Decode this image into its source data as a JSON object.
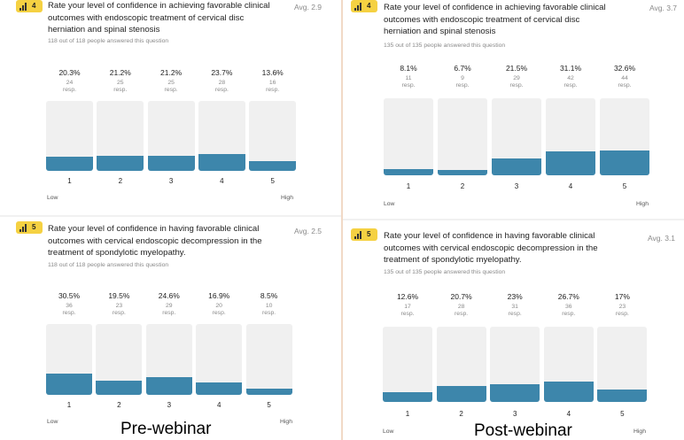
{
  "captions": {
    "left": "Pre-webinar",
    "right": "Post-webinar"
  },
  "resp_label": "resp.",
  "panels": [
    {
      "id": "pre-q4",
      "badge": "4",
      "title": "Rate your level of confidence in achieving favorable clinical outcomes with endoscopic treatment of cervical disc herniation and spinal stenosis",
      "avg": "Avg. 2.9",
      "answered": "118 out of 118 people answered this question",
      "low_label": "Low",
      "high_label": "High",
      "chart_data": {
        "type": "bar",
        "categories": [
          "1",
          "2",
          "3",
          "4",
          "5"
        ],
        "values": [
          20.3,
          21.2,
          21.2,
          23.7,
          13.6
        ],
        "value_labels": [
          "20.3%",
          "21.2%",
          "21.2%",
          "23.7%",
          "13.6%"
        ],
        "counts": [
          "24",
          "25",
          "25",
          "28",
          "16"
        ],
        "ylim": [
          0,
          100
        ]
      }
    },
    {
      "id": "post-q4",
      "badge": "4",
      "title": "Rate your level of confidence in achieving favorable clinical outcomes with endoscopic treatment of cervical disc herniation and spinal stenosis",
      "avg": "Avg. 3.7",
      "answered": "135 out of 135 people answered this question",
      "low_label": "Low",
      "high_label": "High",
      "chart_data": {
        "type": "bar",
        "categories": [
          "1",
          "2",
          "3",
          "4",
          "5"
        ],
        "values": [
          8.1,
          6.7,
          21.5,
          31.1,
          32.6
        ],
        "value_labels": [
          "8.1%",
          "6.7%",
          "21.5%",
          "31.1%",
          "32.6%"
        ],
        "counts": [
          "11",
          "9",
          "29",
          "42",
          "44"
        ],
        "ylim": [
          0,
          100
        ]
      }
    },
    {
      "id": "pre-q5",
      "badge": "5",
      "title": "Rate your level of confidence in having favorable clinical outcomes with cervical endoscopic decompression in the treatment of spondylotic myelopathy.",
      "avg": "Avg. 2.5",
      "answered": "118 out of 118 people answered this question",
      "low_label": "Low",
      "high_label": "High",
      "chart_data": {
        "type": "bar",
        "categories": [
          "1",
          "2",
          "3",
          "4",
          "5"
        ],
        "values": [
          30.5,
          19.5,
          24.6,
          16.9,
          8.5
        ],
        "value_labels": [
          "30.5%",
          "19.5%",
          "24.6%",
          "16.9%",
          "8.5%"
        ],
        "counts": [
          "36",
          "23",
          "29",
          "20",
          "10"
        ],
        "ylim": [
          0,
          100
        ]
      }
    },
    {
      "id": "post-q5",
      "badge": "5",
      "title": "Rate your level of confidence in having favorable clinical outcomes with cervical endoscopic decompression in the treatment of spondylotic myelopathy.",
      "avg": "Avg. 3.1",
      "answered": "135 out of 135 people answered this question",
      "low_label": "Low",
      "high_label": "High",
      "chart_data": {
        "type": "bar",
        "categories": [
          "1",
          "2",
          "3",
          "4",
          "5"
        ],
        "values": [
          12.6,
          20.7,
          23,
          26.7,
          17
        ],
        "value_labels": [
          "12.6%",
          "20.7%",
          "23%",
          "26.7%",
          "17%"
        ],
        "counts": [
          "17",
          "28",
          "31",
          "36",
          "23"
        ],
        "ylim": [
          0,
          100
        ]
      }
    }
  ]
}
